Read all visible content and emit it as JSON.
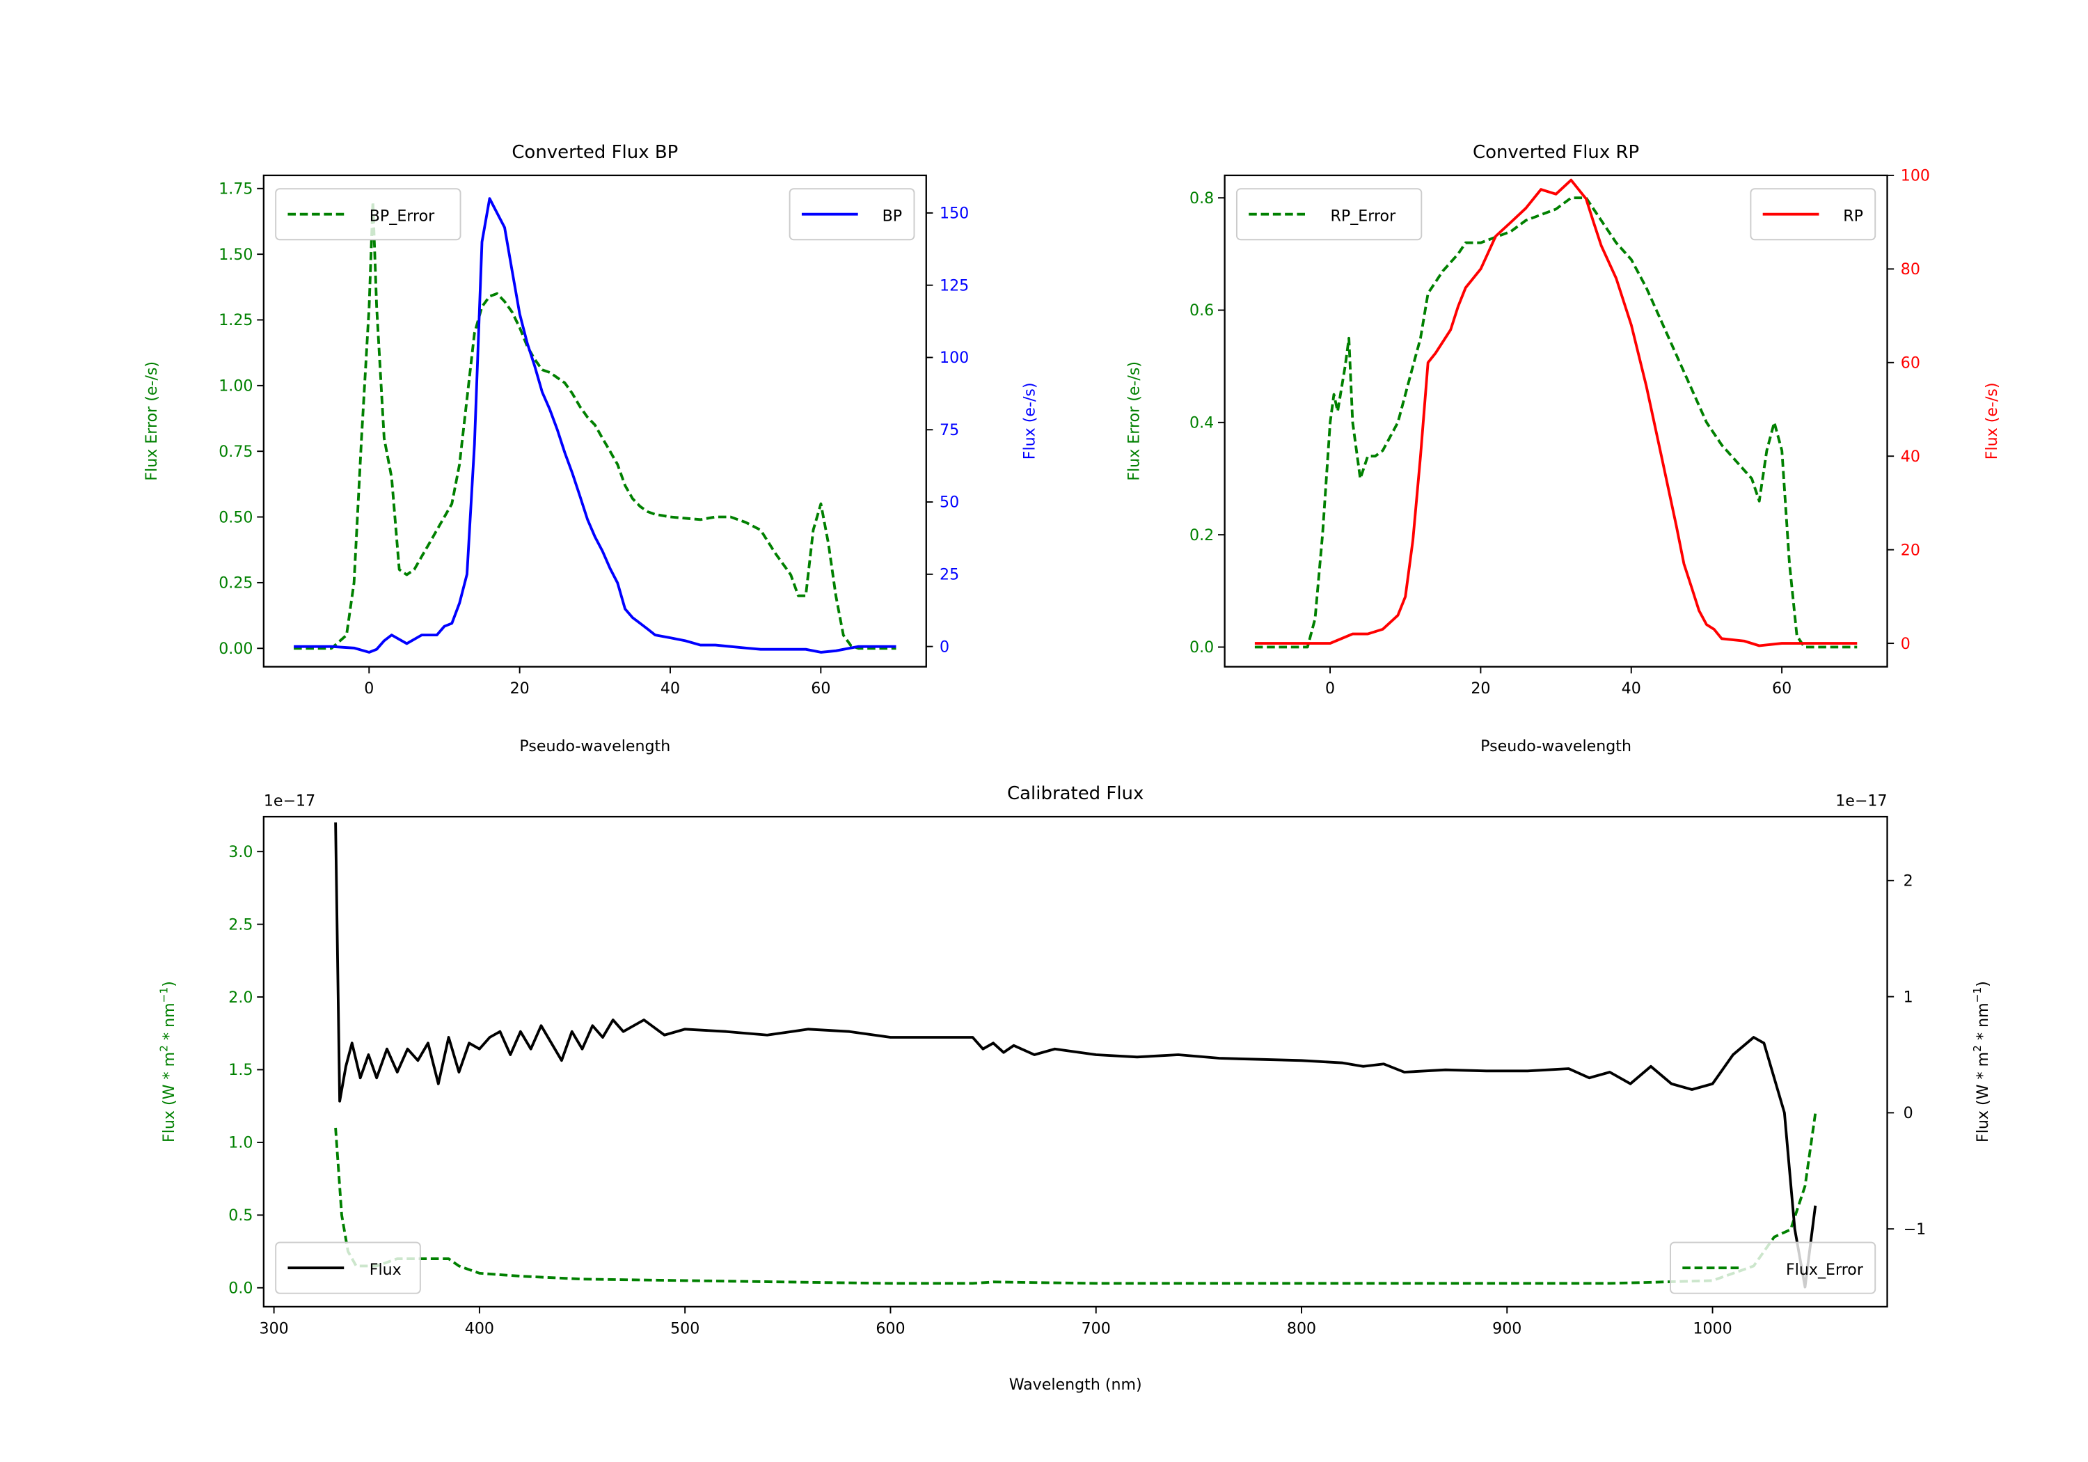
{
  "chart_data": [
    {
      "type": "line",
      "title": "Converted Flux BP",
      "xlabel": "Pseudo-wavelength",
      "ylabel_left": "Flux Error (e-/s)",
      "ylabel_right": "Flux (e-/s)",
      "xticks": [
        0,
        20,
        40,
        60
      ],
      "yticks_left": [
        "0.00",
        "0.25",
        "0.50",
        "0.75",
        "1.00",
        "1.25",
        "1.50",
        "1.75"
      ],
      "yticks_right": [
        "0",
        "25",
        "50",
        "75",
        "100",
        "125",
        "150"
      ],
      "xlim": [
        -14,
        74
      ],
      "ylim_left": [
        -0.07,
        1.8
      ],
      "ylim_right": [
        -7,
        163
      ],
      "colors": {
        "error": "#008000",
        "flux": "#0000ff"
      },
      "legends": [
        {
          "label": "BP_Error",
          "placement": "upper-left"
        },
        {
          "label": "BP",
          "placement": "upper-right"
        }
      ],
      "series": [
        {
          "name": "BP_Error",
          "axis": "left",
          "style": "dashed",
          "x": [
            -10,
            -5,
            -3,
            -2,
            -1,
            0,
            0.5,
            1,
            2,
            3,
            4,
            5,
            6,
            7,
            8,
            9,
            10,
            11,
            12,
            13,
            14,
            15,
            16,
            17,
            18,
            19,
            20,
            21,
            22,
            23,
            24,
            25,
            26,
            27,
            28,
            29,
            30,
            31,
            32,
            33,
            34,
            35,
            36,
            37,
            38,
            40,
            44,
            46,
            48,
            50,
            52,
            54,
            56,
            57,
            58,
            59,
            60,
            61,
            62,
            63,
            64,
            65,
            70
          ],
          "y": [
            0,
            0,
            0.05,
            0.25,
            0.8,
            1.3,
            1.7,
            1.3,
            0.8,
            0.65,
            0.3,
            0.28,
            0.3,
            0.35,
            0.4,
            0.45,
            0.5,
            0.55,
            0.7,
            0.95,
            1.2,
            1.3,
            1.34,
            1.35,
            1.32,
            1.28,
            1.22,
            1.15,
            1.1,
            1.06,
            1.05,
            1.03,
            1.01,
            0.97,
            0.92,
            0.88,
            0.85,
            0.8,
            0.75,
            0.7,
            0.62,
            0.57,
            0.54,
            0.52,
            0.51,
            0.5,
            0.49,
            0.5,
            0.5,
            0.48,
            0.45,
            0.36,
            0.28,
            0.2,
            0.2,
            0.45,
            0.55,
            0.4,
            0.2,
            0.05,
            0.01,
            0,
            0
          ]
        },
        {
          "name": "BP",
          "axis": "right",
          "style": "solid",
          "x": [
            -10,
            -5,
            -2,
            0,
            1,
            2,
            3,
            5,
            7,
            9,
            10,
            11,
            12,
            13,
            14,
            15,
            16,
            17,
            18,
            19,
            20,
            21,
            22,
            23,
            24,
            25,
            26,
            27,
            28,
            29,
            30,
            31,
            32,
            33,
            34,
            35,
            36,
            37,
            38,
            40,
            42,
            44,
            46,
            48,
            50,
            52,
            55,
            58,
            60,
            62,
            65,
            70
          ],
          "y": [
            0,
            0,
            -0.5,
            -2,
            -1,
            2,
            4,
            1,
            4,
            4,
            7,
            8,
            15,
            25,
            70,
            140,
            155,
            150,
            145,
            130,
            115,
            105,
            97,
            88,
            82,
            75,
            67,
            60,
            52,
            44,
            38,
            33,
            27,
            22,
            13,
            10,
            8,
            6,
            4,
            3,
            2,
            0.5,
            0.5,
            0,
            -0.5,
            -1,
            -1,
            -1,
            -2,
            -1.5,
            0,
            0
          ]
        }
      ]
    },
    {
      "type": "line",
      "title": "Converted Flux RP",
      "xlabel": "Pseudo-wavelength",
      "ylabel_left": "Flux Error (e-/s)",
      "ylabel_right": "Flux (e-/s)",
      "xticks": [
        0,
        20,
        40,
        60
      ],
      "yticks_left": [
        "0.0",
        "0.2",
        "0.4",
        "0.6",
        "0.8"
      ],
      "yticks_right": [
        "0",
        "20",
        "40",
        "60",
        "80",
        "100"
      ],
      "xlim": [
        -14,
        74
      ],
      "ylim_left": [
        -0.035,
        0.84
      ],
      "ylim_right": [
        -5,
        100
      ],
      "colors": {
        "error": "#008000",
        "flux": "#ff0000"
      },
      "legends": [
        {
          "label": "RP_Error",
          "placement": "upper-left"
        },
        {
          "label": "RP",
          "placement": "upper-right"
        }
      ],
      "series": [
        {
          "name": "RP_Error",
          "axis": "left",
          "style": "dashed",
          "x": [
            -10,
            -3,
            -2,
            -1,
            0,
            0.5,
            1,
            2,
            2.5,
            3,
            4,
            5,
            6,
            7,
            9,
            11,
            12,
            13,
            15,
            17,
            18,
            20,
            22,
            24,
            26,
            28,
            30,
            32,
            34,
            36,
            38,
            40,
            42,
            44,
            46,
            48,
            50,
            52,
            54,
            56,
            57,
            58,
            59,
            60,
            61,
            62,
            63,
            70
          ],
          "y": [
            0,
            0,
            0.05,
            0.2,
            0.4,
            0.45,
            0.42,
            0.5,
            0.55,
            0.4,
            0.3,
            0.34,
            0.34,
            0.35,
            0.4,
            0.5,
            0.55,
            0.63,
            0.67,
            0.7,
            0.72,
            0.72,
            0.73,
            0.74,
            0.76,
            0.77,
            0.78,
            0.8,
            0.8,
            0.76,
            0.72,
            0.69,
            0.64,
            0.58,
            0.52,
            0.46,
            0.4,
            0.36,
            0.33,
            0.3,
            0.26,
            0.35,
            0.4,
            0.35,
            0.15,
            0.02,
            0,
            0
          ]
        },
        {
          "name": "RP",
          "axis": "right",
          "style": "solid",
          "x": [
            -10,
            0,
            3,
            5,
            7,
            9,
            10,
            11,
            12,
            13,
            14,
            16,
            17,
            18,
            20,
            22,
            24,
            26,
            28,
            30,
            32,
            34,
            35,
            36,
            38,
            40,
            42,
            44,
            46,
            47,
            48,
            49,
            50,
            51,
            52,
            55,
            57,
            60,
            70
          ],
          "y": [
            0,
            0,
            2,
            2,
            3,
            6,
            10,
            22,
            40,
            60,
            62,
            67,
            72,
            76,
            80,
            87,
            90,
            93,
            97,
            96,
            99,
            95,
            90,
            85,
            78,
            68,
            55,
            40,
            25,
            17,
            12,
            7,
            4,
            3,
            1,
            0.5,
            -0.5,
            0,
            0
          ]
        }
      ]
    },
    {
      "type": "line",
      "title": "Calibrated Flux",
      "xlabel": "Wavelength (nm)",
      "ylabel_left": "Flux (W * m^2 * nm^-1)",
      "ylabel_right": "Flux (W * m^2 * nm^-1)",
      "offset_left": "1e−17",
      "offset_right": "1e−17",
      "xticks": [
        300,
        400,
        500,
        600,
        700,
        800,
        900,
        1000
      ],
      "yticks_left": [
        "0.0",
        "0.5",
        "1.0",
        "1.5",
        "2.0",
        "2.5",
        "3.0"
      ],
      "yticks_right": [
        "−1",
        "0",
        "1",
        "2"
      ],
      "xlim": [
        295,
        1085
      ],
      "ylim_left": [
        -0.13,
        3.24
      ],
      "ylim_right": [
        -1.67,
        2.55
      ],
      "colors": {
        "error": "#008000",
        "flux": "#000000"
      },
      "legends": [
        {
          "label": "Flux",
          "placement": "lower-left"
        },
        {
          "label": "Flux_Error",
          "placement": "lower-right"
        }
      ],
      "series": [
        {
          "name": "Flux_Error",
          "axis": "left",
          "style": "dashed",
          "x": [
            330,
            333,
            336,
            340,
            350,
            360,
            380,
            385,
            390,
            400,
            420,
            450,
            500,
            600,
            640,
            650,
            700,
            800,
            900,
            950,
            1000,
            1020,
            1030,
            1038,
            1045,
            1050
          ],
          "y": [
            1.1,
            0.5,
            0.25,
            0.15,
            0.15,
            0.2,
            0.2,
            0.2,
            0.15,
            0.1,
            0.08,
            0.06,
            0.05,
            0.03,
            0.03,
            0.04,
            0.03,
            0.03,
            0.03,
            0.03,
            0.05,
            0.15,
            0.35,
            0.4,
            0.7,
            1.2
          ]
        },
        {
          "name": "Flux",
          "axis": "right",
          "style": "solid",
          "x": [
            330,
            332,
            335,
            338,
            342,
            346,
            350,
            355,
            360,
            365,
            370,
            375,
            380,
            385,
            390,
            395,
            400,
            405,
            410,
            415,
            420,
            425,
            430,
            440,
            445,
            450,
            455,
            460,
            465,
            470,
            480,
            490,
            500,
            520,
            540,
            560,
            580,
            600,
            620,
            640,
            645,
            650,
            655,
            660,
            670,
            680,
            700,
            720,
            740,
            760,
            780,
            800,
            820,
            830,
            840,
            850,
            870,
            890,
            910,
            930,
            940,
            950,
            960,
            970,
            980,
            990,
            1000,
            1010,
            1020,
            1025,
            1035,
            1040,
            1045,
            1050
          ],
          "y": [
            2.5,
            0.1,
            0.4,
            0.6,
            0.3,
            0.5,
            0.3,
            0.55,
            0.35,
            0.55,
            0.45,
            0.6,
            0.25,
            0.65,
            0.35,
            0.6,
            0.55,
            0.65,
            0.7,
            0.5,
            0.7,
            0.55,
            0.75,
            0.45,
            0.7,
            0.55,
            0.75,
            0.65,
            0.8,
            0.7,
            0.8,
            0.67,
            0.72,
            0.7,
            0.67,
            0.72,
            0.7,
            0.65,
            0.65,
            0.65,
            0.55,
            0.6,
            0.52,
            0.58,
            0.5,
            0.55,
            0.5,
            0.48,
            0.5,
            0.47,
            0.46,
            0.45,
            0.43,
            0.4,
            0.42,
            0.35,
            0.37,
            0.36,
            0.36,
            0.38,
            0.3,
            0.35,
            0.25,
            0.4,
            0.25,
            0.2,
            0.25,
            0.5,
            0.65,
            0.6,
            0,
            -1,
            -1.5,
            -0.8
          ]
        }
      ]
    }
  ]
}
